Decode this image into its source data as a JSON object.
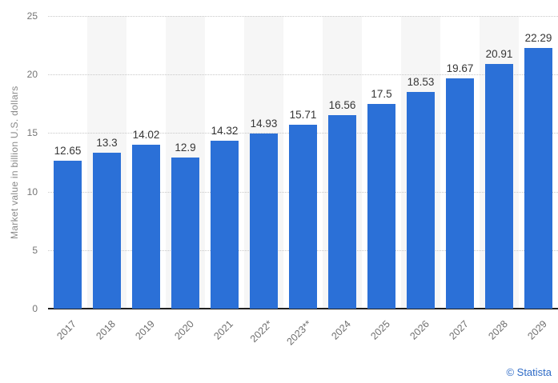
{
  "chart_data": {
    "type": "bar",
    "title": "",
    "xlabel": "",
    "ylabel": "Market value in billion U.S. dollars",
    "categories": [
      "2017",
      "2018",
      "2019",
      "2020",
      "2021",
      "2022*",
      "2023**",
      "2024",
      "2025",
      "2026",
      "2027",
      "2028",
      "2029"
    ],
    "values": [
      12.65,
      13.3,
      14.02,
      12.9,
      14.32,
      14.93,
      15.71,
      16.56,
      17.5,
      18.53,
      19.67,
      20.91,
      22.29
    ],
    "data_labels": [
      "12.65",
      "13.3",
      "14.02",
      "12.9",
      "14.32",
      "14.93",
      "15.71",
      "16.56",
      "17.5",
      "18.53",
      "19.67",
      "20.91",
      "22.29"
    ],
    "y_ticks": [
      0,
      5,
      10,
      15,
      20,
      25
    ],
    "ylim": [
      0,
      25
    ],
    "grid": "horizontal dotted lines at each y tick",
    "legend": "none",
    "alternating_column_bands": [
      1,
      3,
      5,
      7,
      9,
      11
    ]
  },
  "colors": {
    "bar": "#2b70d7",
    "column_band": "#f6f6f6",
    "gridline": "#c8c8c8",
    "axis_baseline": "#1f1f1f",
    "tick_text": "#757575",
    "value_label_text": "#363636",
    "credit_link": "#2d6ac6",
    "background": "#ffffff"
  },
  "footer": {
    "credit": "© Statista"
  }
}
